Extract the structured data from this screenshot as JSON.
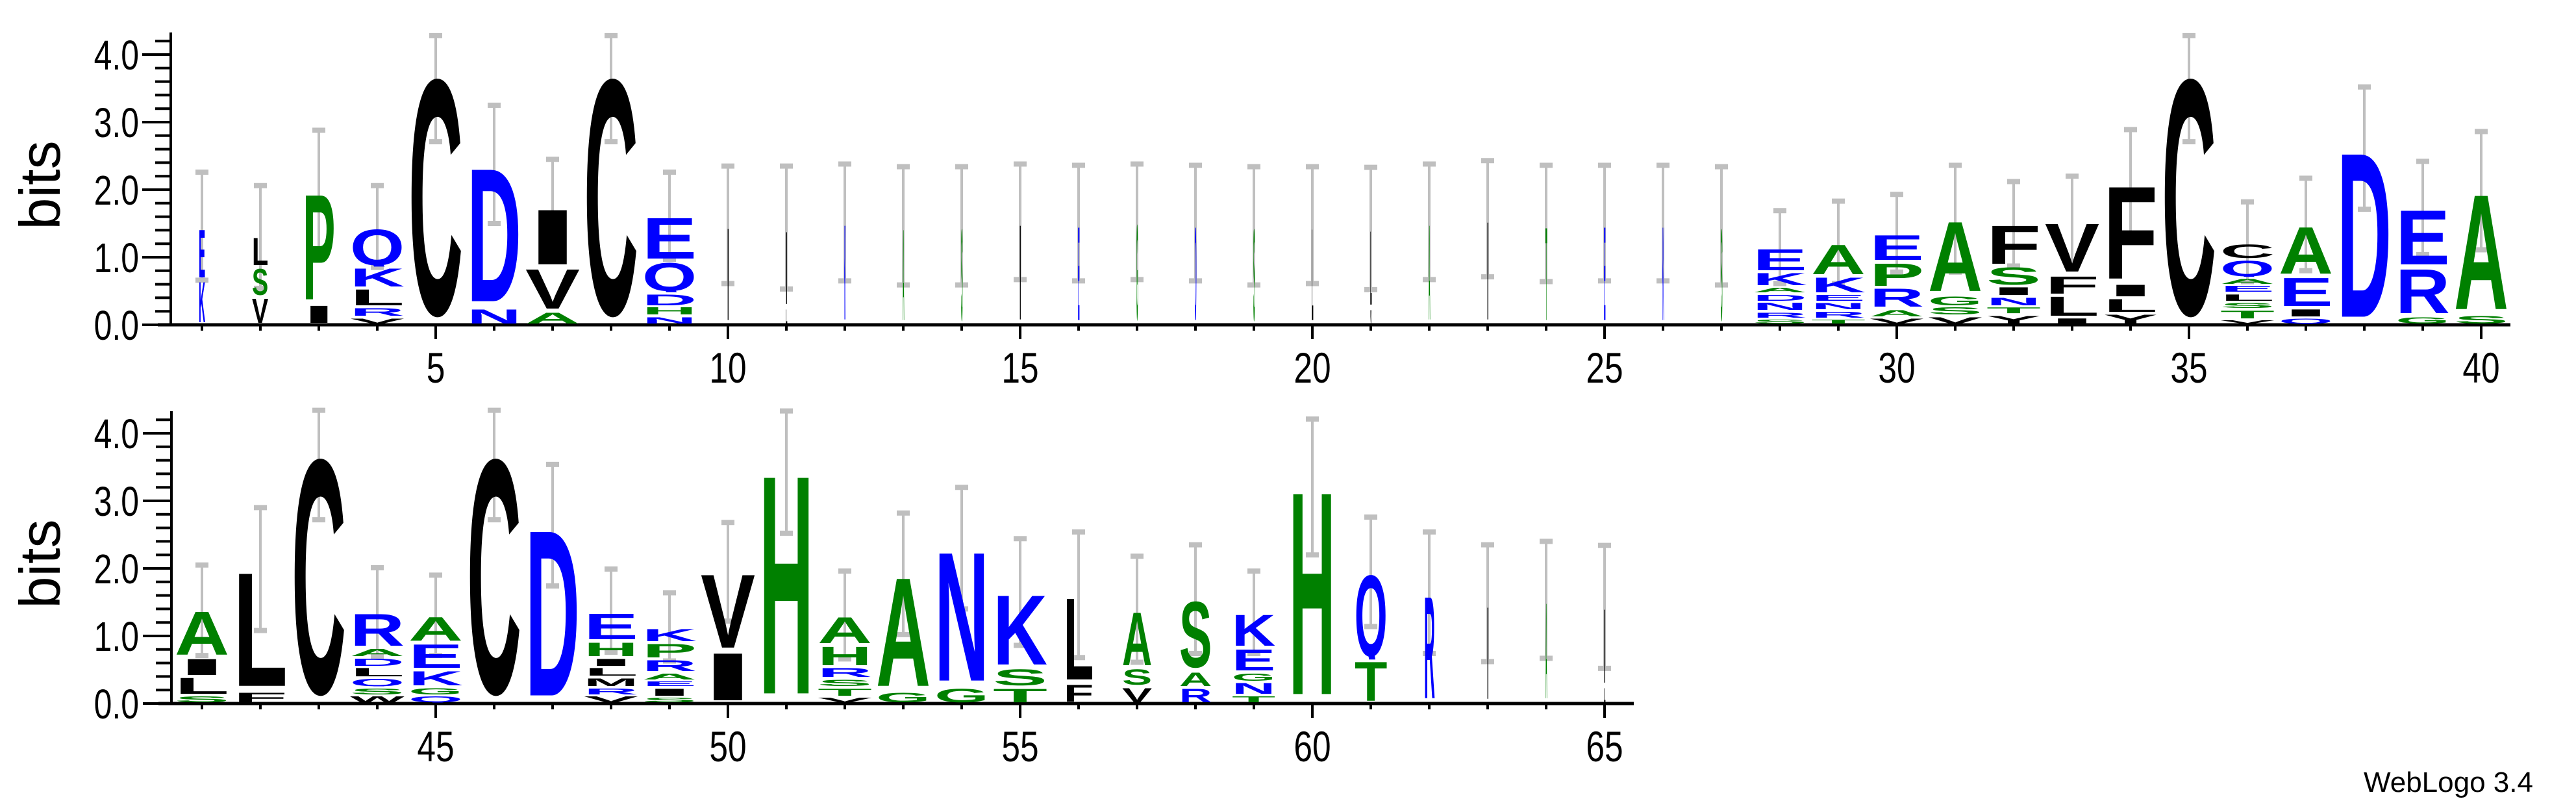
{
  "chart_data": {
    "type": "sequence-logo",
    "ylabel": "bits",
    "ylim": [
      0,
      4.3
    ],
    "yticks": [
      "0.0",
      "1.0",
      "2.0",
      "3.0",
      "4.0"
    ],
    "xticks_labeled_every": 5,
    "colors": {
      "blue": "#0000ff",
      "green": "#008000",
      "black": "#000000",
      "error_bar": "#bfbfbf"
    },
    "color_groups": {
      "blue": "DENQKR",
      "green": "HASTGP",
      "black": "CYVILFMW"
    },
    "panels": [
      {
        "range": [
          1,
          40
        ],
        "xticks": [
          "5",
          "10",
          "15",
          "20",
          "25",
          "30",
          "35",
          "40"
        ]
      },
      {
        "range": [
          41,
          65
        ],
        "xticks": [
          "45",
          "50",
          "55",
          "60",
          "65"
        ]
      }
    ],
    "positions": [
      {
        "p": 1,
        "w": 0.12,
        "s": [
          [
            "K",
            0.66
          ],
          [
            "E",
            0.78
          ]
        ],
        "e": [
          0.66,
          2.26
        ]
      },
      {
        "p": 2,
        "w": 0.3,
        "s": [
          [
            "V",
            0.41
          ],
          [
            "S",
            0.44
          ],
          [
            "L",
            0.46
          ]
        ],
        "e": [
          0.54,
          2.06
        ]
      },
      {
        "p": 3,
        "w": 0.6,
        "s": [
          [
            "I",
            0.3
          ],
          [
            "P",
            1.68
          ]
        ],
        "e": [
          1.1,
          2.88
        ]
      },
      {
        "p": 4,
        "w": 1,
        "s": [
          [
            "V",
            0.11
          ],
          [
            "R",
            0.15
          ],
          [
            "L",
            0.28
          ],
          [
            "K",
            0.31
          ],
          [
            "Q",
            0.59
          ]
        ],
        "e": [
          0.85,
          2.06
        ]
      },
      {
        "p": 5,
        "w": 1,
        "s": [
          [
            "C",
            3.72
          ]
        ],
        "e": [
          2.71,
          4.28
        ]
      },
      {
        "p": 6,
        "w": 1,
        "s": [
          [
            "N",
            0.25
          ],
          [
            "D",
            2.12
          ]
        ],
        "e": [
          1.5,
          3.25
        ]
      },
      {
        "p": 7,
        "w": 1,
        "s": [
          [
            "A",
            0.2
          ],
          [
            "V",
            0.65
          ],
          [
            "I",
            0.89
          ]
        ],
        "e": [
          1.06,
          2.45
        ]
      },
      {
        "p": 8,
        "w": 1,
        "s": [
          [
            "C",
            3.72
          ]
        ],
        "e": [
          2.71,
          4.28
        ]
      },
      {
        "p": 9,
        "w": 1,
        "s": [
          [
            "N",
            0.13
          ],
          [
            "H",
            0.14
          ],
          [
            "D",
            0.2
          ],
          [
            "Q",
            0.47
          ],
          [
            "E",
            0.67
          ]
        ],
        "e": [
          0.97,
          2.26
        ]
      },
      {
        "p": 10,
        "w": 0.03,
        "s": [
          [
            "I",
            1.48
          ]
        ],
        "e": [
          0.61,
          2.35
        ]
      },
      {
        "p": 11,
        "w": 0.03,
        "s": [
          [
            "L",
            0.25
          ],
          [
            "I",
            1.17
          ]
        ],
        "e": [
          0.53,
          2.35
        ]
      },
      {
        "p": 12,
        "w": 0.03,
        "s": [
          [
            "K",
            1.52
          ]
        ],
        "e": [
          0.65,
          2.38
        ]
      },
      {
        "p": 13,
        "w": 0.03,
        "s": [
          [
            "A",
            1.46
          ]
        ],
        "e": [
          0.59,
          2.34
        ]
      },
      {
        "p": 14,
        "w": 0.03,
        "s": [
          [
            "S",
            1.46
          ]
        ],
        "e": [
          0.59,
          2.34
        ]
      },
      {
        "p": 15,
        "w": 0.03,
        "s": [
          [
            "I",
            1.52
          ]
        ],
        "e": [
          0.67,
          2.38
        ]
      },
      {
        "p": 16,
        "w": 0.03,
        "s": [
          [
            "E",
            1.5
          ]
        ],
        "e": [
          0.65,
          2.36
        ]
      },
      {
        "p": 17,
        "w": 0.03,
        "s": [
          [
            "G",
            1.52
          ]
        ],
        "e": [
          0.67,
          2.38
        ]
      },
      {
        "p": 18,
        "w": 0.03,
        "s": [
          [
            "D",
            1.5
          ]
        ],
        "e": [
          0.65,
          2.36
        ]
      },
      {
        "p": 19,
        "w": 0.03,
        "s": [
          [
            "S",
            1.46
          ]
        ],
        "e": [
          0.59,
          2.34
        ]
      },
      {
        "p": 20,
        "w": 0.03,
        "s": [
          [
            "L",
            1.47
          ]
        ],
        "e": [
          0.61,
          2.34
        ]
      },
      {
        "p": 21,
        "w": 0.03,
        "s": [
          [
            "V",
            0.24
          ],
          [
            "L",
            1.19
          ]
        ],
        "e": [
          0.52,
          2.33
        ]
      },
      {
        "p": 22,
        "w": 0.03,
        "s": [
          [
            "A",
            1.52
          ]
        ],
        "e": [
          0.67,
          2.38
        ]
      },
      {
        "p": 23,
        "w": 0.03,
        "s": [
          [
            "I",
            1.57
          ]
        ],
        "e": [
          0.71,
          2.43
        ]
      },
      {
        "p": 24,
        "w": 0.03,
        "s": [
          [
            "T",
            1.49
          ]
        ],
        "e": [
          0.64,
          2.36
        ]
      },
      {
        "p": 25,
        "w": 0.03,
        "s": [
          [
            "E",
            1.5
          ]
        ],
        "e": [
          0.65,
          2.36
        ]
      },
      {
        "p": 26,
        "w": 0.03,
        "s": [
          [
            "K",
            1.5
          ]
        ],
        "e": [
          0.65,
          2.36
        ]
      },
      {
        "p": 27,
        "w": 0.03,
        "s": [
          [
            "S",
            1.46
          ]
        ],
        "e": [
          0.59,
          2.34
        ]
      },
      {
        "p": 28,
        "w": 1,
        "s": [
          [
            "S",
            0.09
          ],
          [
            "R",
            0.11
          ],
          [
            "N",
            0.14
          ],
          [
            "D",
            0.12
          ],
          [
            "A",
            0.1
          ],
          [
            "K",
            0.22
          ],
          [
            "E",
            0.36
          ]
        ],
        "e": [
          0.61,
          1.69
        ]
      },
      {
        "p": 29,
        "w": 1,
        "s": [
          [
            "T",
            0.09
          ],
          [
            "R",
            0.12
          ],
          [
            "N",
            0.13
          ],
          [
            "E",
            0.12
          ],
          [
            "K",
            0.26
          ],
          [
            "A",
            0.49
          ]
        ],
        "e": [
          0.61,
          1.83
        ]
      },
      {
        "p": 30,
        "w": 1,
        "s": [
          [
            "V",
            0.11
          ],
          [
            "A",
            0.13
          ],
          [
            "R",
            0.31
          ],
          [
            "P",
            0.38
          ],
          [
            "E",
            0.42
          ]
        ],
        "e": [
          0.78,
          1.93
        ]
      },
      {
        "p": 31,
        "w": 1,
        "s": [
          [
            "V",
            0.13
          ],
          [
            "S",
            0.14
          ],
          [
            "G",
            0.17
          ],
          [
            "A",
            1.12
          ]
        ],
        "e": [
          0.78,
          2.36
        ]
      },
      {
        "p": 32,
        "w": 1,
        "s": [
          [
            "Y",
            0.15
          ],
          [
            "T",
            0.12
          ],
          [
            "N",
            0.15
          ],
          [
            "I",
            0.15
          ],
          [
            "S",
            0.3
          ],
          [
            "F",
            0.63
          ]
        ],
        "e": [
          0.87,
          2.12
        ]
      },
      {
        "p": 33,
        "w": 1,
        "s": [
          [
            "I",
            0.11
          ],
          [
            "L",
            0.33
          ],
          [
            "F",
            0.3
          ],
          [
            "V",
            0.78
          ]
        ],
        "e": [
          0.85,
          2.2
        ]
      },
      {
        "p": 34,
        "w": 1,
        "s": [
          [
            "Y",
            0.17
          ],
          [
            "L",
            0.23
          ],
          [
            "I",
            0.21
          ],
          [
            "F",
            1.48
          ]
        ],
        "e": [
          1.29,
          2.89
        ]
      },
      {
        "p": 35,
        "w": 1,
        "s": [
          [
            "C",
            3.72
          ]
        ],
        "e": [
          2.71,
          4.28
        ]
      },
      {
        "p": 36,
        "w": 1,
        "s": [
          [
            "V",
            0.08
          ],
          [
            "T",
            0.15
          ],
          [
            "S",
            0.11
          ],
          [
            "L",
            0.13
          ],
          [
            "E",
            0.12
          ],
          [
            "A",
            0.11
          ],
          [
            "Q",
            0.27
          ],
          [
            "C",
            0.24
          ]
        ],
        "e": [
          0.64,
          1.82
        ]
      },
      {
        "p": 37,
        "w": 1,
        "s": [
          [
            "Q",
            0.11
          ],
          [
            "I",
            0.14
          ],
          [
            "E",
            0.47
          ],
          [
            "A",
            0.76
          ]
        ],
        "e": [
          0.8,
          2.17
        ]
      },
      {
        "p": 38,
        "w": 1,
        "s": [
          [
            "D",
            2.61
          ]
        ],
        "e": [
          1.71,
          3.52
        ]
      },
      {
        "p": 39,
        "w": 1,
        "s": [
          [
            "G",
            0.13
          ],
          [
            "R",
            0.72
          ],
          [
            "E",
            0.88
          ]
        ],
        "e": [
          1.04,
          2.42
        ]
      },
      {
        "p": 40,
        "w": 1,
        "s": [
          [
            "S",
            0.15
          ],
          [
            "A",
            1.83
          ]
        ],
        "e": [
          1.11,
          2.86
        ]
      },
      {
        "p": 41,
        "w": 1,
        "s": [
          [
            "S",
            0.12
          ],
          [
            "L",
            0.28
          ],
          [
            "I",
            0.28
          ],
          [
            "A",
            0.71
          ]
        ],
        "e": [
          0.71,
          2.05
        ]
      },
      {
        "p": 42,
        "w": 1,
        "s": [
          [
            "F",
            0.18
          ],
          [
            "L",
            1.81
          ]
        ],
        "e": [
          1.08,
          2.9
        ]
      },
      {
        "p": 43,
        "w": 1,
        "s": [
          [
            "C",
            3.7
          ]
        ],
        "e": [
          2.72,
          4.34
        ]
      },
      {
        "p": 44,
        "w": 1,
        "s": [
          [
            "W",
            0.12
          ],
          [
            "S",
            0.12
          ],
          [
            "Q",
            0.14
          ],
          [
            "L",
            0.16
          ],
          [
            "D",
            0.14
          ],
          [
            "A",
            0.14
          ],
          [
            "R",
            0.53
          ]
        ],
        "e": [
          0.7,
          2.01
        ]
      },
      {
        "p": 45,
        "w": 1,
        "s": [
          [
            "Q",
            0.12
          ],
          [
            "G",
            0.13
          ],
          [
            "K",
            0.25
          ],
          [
            "E",
            0.4
          ],
          [
            "A",
            0.4
          ]
        ],
        "e": [
          0.71,
          1.9
        ]
      },
      {
        "p": 46,
        "w": 1,
        "s": [
          [
            "C",
            3.7
          ]
        ],
        "e": [
          2.72,
          4.34
        ]
      },
      {
        "p": 47,
        "w": 1,
        "s": [
          [
            "D",
            2.63
          ]
        ],
        "e": [
          1.74,
          3.54
        ]
      },
      {
        "p": 48,
        "w": 1,
        "s": [
          [
            "V",
            0.12
          ],
          [
            "R",
            0.12
          ],
          [
            "M",
            0.15
          ],
          [
            "L",
            0.15
          ],
          [
            "I",
            0.14
          ],
          [
            "H",
            0.24
          ],
          [
            "E",
            0.43
          ]
        ],
        "e": [
          0.76,
          1.99
        ]
      },
      {
        "p": 49,
        "w": 1,
        "s": [
          [
            "S",
            0.1
          ],
          [
            "I",
            0.14
          ],
          [
            "E",
            0.1
          ],
          [
            "A",
            0.12
          ],
          [
            "R",
            0.2
          ],
          [
            "P",
            0.24
          ],
          [
            "K",
            0.22
          ]
        ],
        "e": [
          0.63,
          1.64
        ]
      },
      {
        "p": 50,
        "w": 1,
        "s": [
          [
            "I",
            0.77
          ],
          [
            "V",
            1.18
          ]
        ],
        "e": [
          1.22,
          2.68
        ]
      },
      {
        "p": 51,
        "w": 1,
        "s": [
          [
            "H",
            3.46
          ]
        ],
        "e": [
          2.52,
          4.33
        ]
      },
      {
        "p": 52,
        "w": 1,
        "s": [
          [
            "V",
            0.1
          ],
          [
            "T",
            0.14
          ],
          [
            "S",
            0.13
          ],
          [
            "R",
            0.17
          ],
          [
            "H",
            0.32
          ],
          [
            "A",
            0.44
          ]
        ],
        "e": [
          0.66,
          1.96
        ]
      },
      {
        "p": 53,
        "w": 1,
        "s": [
          [
            "G",
            0.18
          ],
          [
            "A",
            1.73
          ]
        ],
        "e": [
          1.02,
          2.82
        ]
      },
      {
        "p": 54,
        "w": 1,
        "s": [
          [
            "G",
            0.24
          ],
          [
            "N",
            2.05
          ]
        ],
        "e": [
          1.4,
          3.2
        ]
      },
      {
        "p": 55,
        "w": 1,
        "s": [
          [
            "T",
            0.24
          ],
          [
            "S",
            0.28
          ],
          [
            "K",
            1.12
          ]
        ],
        "e": [
          0.86,
          2.44
        ]
      },
      {
        "p": 56,
        "w": 0.55,
        "s": [
          [
            "F",
            0.29
          ],
          [
            "L",
            1.31
          ]
        ],
        "e": [
          0.68,
          2.54
        ]
      },
      {
        "p": 57,
        "w": 0.55,
        "s": [
          [
            "V",
            0.25
          ],
          [
            "S",
            0.27
          ],
          [
            "A",
            0.86
          ]
        ],
        "e": [
          0.61,
          2.18
        ]
      },
      {
        "p": 58,
        "w": 0.6,
        "s": [
          [
            "R",
            0.24
          ],
          [
            "A",
            0.24
          ],
          [
            "S",
            1.06
          ]
        ],
        "e": [
          0.74,
          2.35
        ]
      },
      {
        "p": 59,
        "w": 0.8,
        "s": [
          [
            "T",
            0.12
          ],
          [
            "N",
            0.2
          ],
          [
            "G",
            0.14
          ],
          [
            "E",
            0.36
          ],
          [
            "K",
            0.52
          ]
        ],
        "e": [
          0.74,
          1.96
        ]
      },
      {
        "p": 60,
        "w": 0.85,
        "s": [
          [
            "H",
            3.21
          ]
        ],
        "e": [
          2.2,
          4.21
        ]
      },
      {
        "p": 61,
        "w": 0.6,
        "s": [
          [
            "T",
            0.64
          ],
          [
            "Q",
            1.3
          ]
        ],
        "e": [
          1.14,
          2.76
        ]
      },
      {
        "p": 62,
        "w": 0.2,
        "s": [
          [
            "R",
            1.63
          ]
        ],
        "e": [
          0.74,
          2.54
        ]
      },
      {
        "p": 63,
        "w": 0.03,
        "s": [
          [
            "I",
            1.48
          ]
        ],
        "e": [
          0.62,
          2.35
        ]
      },
      {
        "p": 64,
        "w": 0.03,
        "s": [
          [
            "A",
            1.53
          ]
        ],
        "e": [
          0.67,
          2.4
        ]
      },
      {
        "p": 65,
        "w": 0.03,
        "s": [
          [
            "L",
            0.25
          ],
          [
            "I",
            1.19
          ]
        ],
        "e": [
          0.52,
          2.34
        ]
      }
    ]
  },
  "footer": {
    "credit": "WebLogo 3.4"
  }
}
